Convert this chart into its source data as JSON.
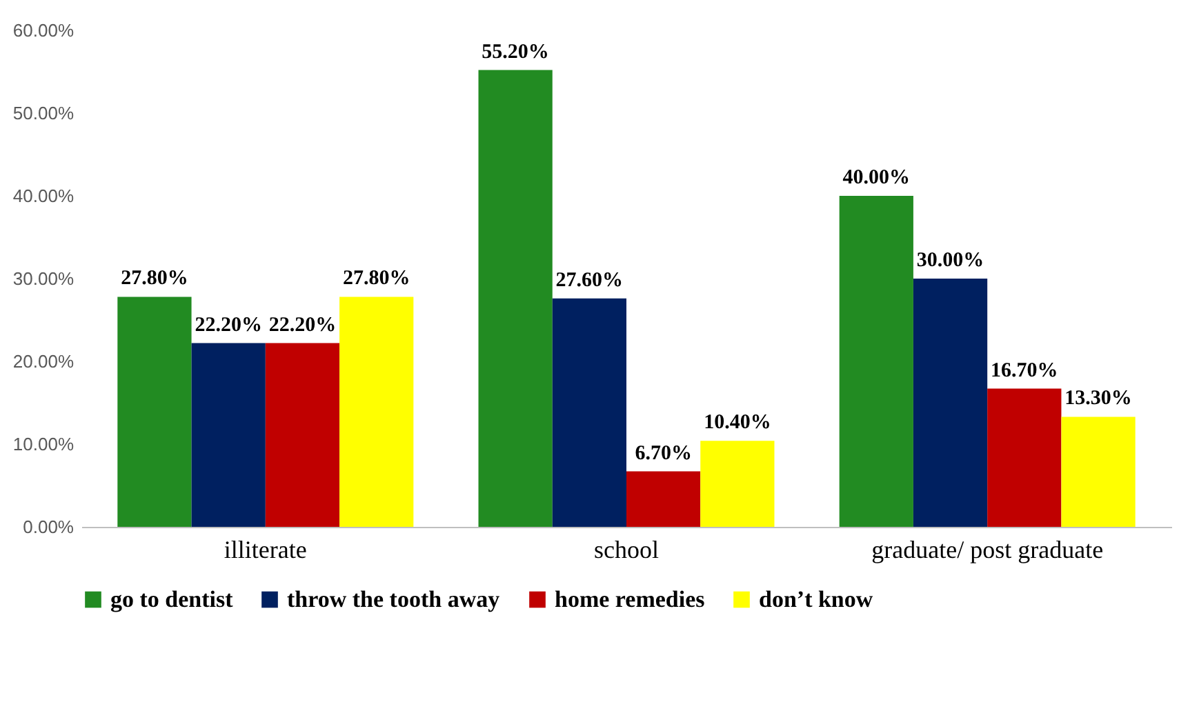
{
  "chart_data": {
    "type": "bar",
    "categories": [
      "illiterate",
      "school",
      "graduate/ post graduate"
    ],
    "series": [
      {
        "name": "go to dentist",
        "color": "#228b22",
        "values": [
          27.8,
          55.2,
          40.0
        ],
        "value_labels": [
          "27.80%",
          "55.20%",
          "40.00%"
        ]
      },
      {
        "name": "throw the tooth away",
        "color": "#002060",
        "values": [
          22.2,
          27.6,
          30.0
        ],
        "value_labels": [
          "22.20%",
          "27.60%",
          "30.00%"
        ]
      },
      {
        "name": "home remedies",
        "color": "#c00000",
        "values": [
          22.2,
          6.7,
          16.7
        ],
        "value_labels": [
          "22.20%",
          "6.70%",
          "16.70%"
        ]
      },
      {
        "name": "don’t know",
        "color": "#ffff00",
        "values": [
          27.8,
          10.4,
          13.3
        ],
        "value_labels": [
          "27.80%",
          "10.40%",
          "13.30%"
        ]
      }
    ],
    "ylim": [
      0,
      60
    ],
    "yticks": [
      {
        "value": 0,
        "label": "0.00%"
      },
      {
        "value": 10,
        "label": "10.00%"
      },
      {
        "value": 20,
        "label": "20.00%"
      },
      {
        "value": 30,
        "label": "30.00%"
      },
      {
        "value": 40,
        "label": "40.00%"
      },
      {
        "value": 50,
        "label": "50.00%"
      },
      {
        "value": 60,
        "label": "60.00%"
      }
    ],
    "grid": false,
    "legend": "bottom"
  }
}
